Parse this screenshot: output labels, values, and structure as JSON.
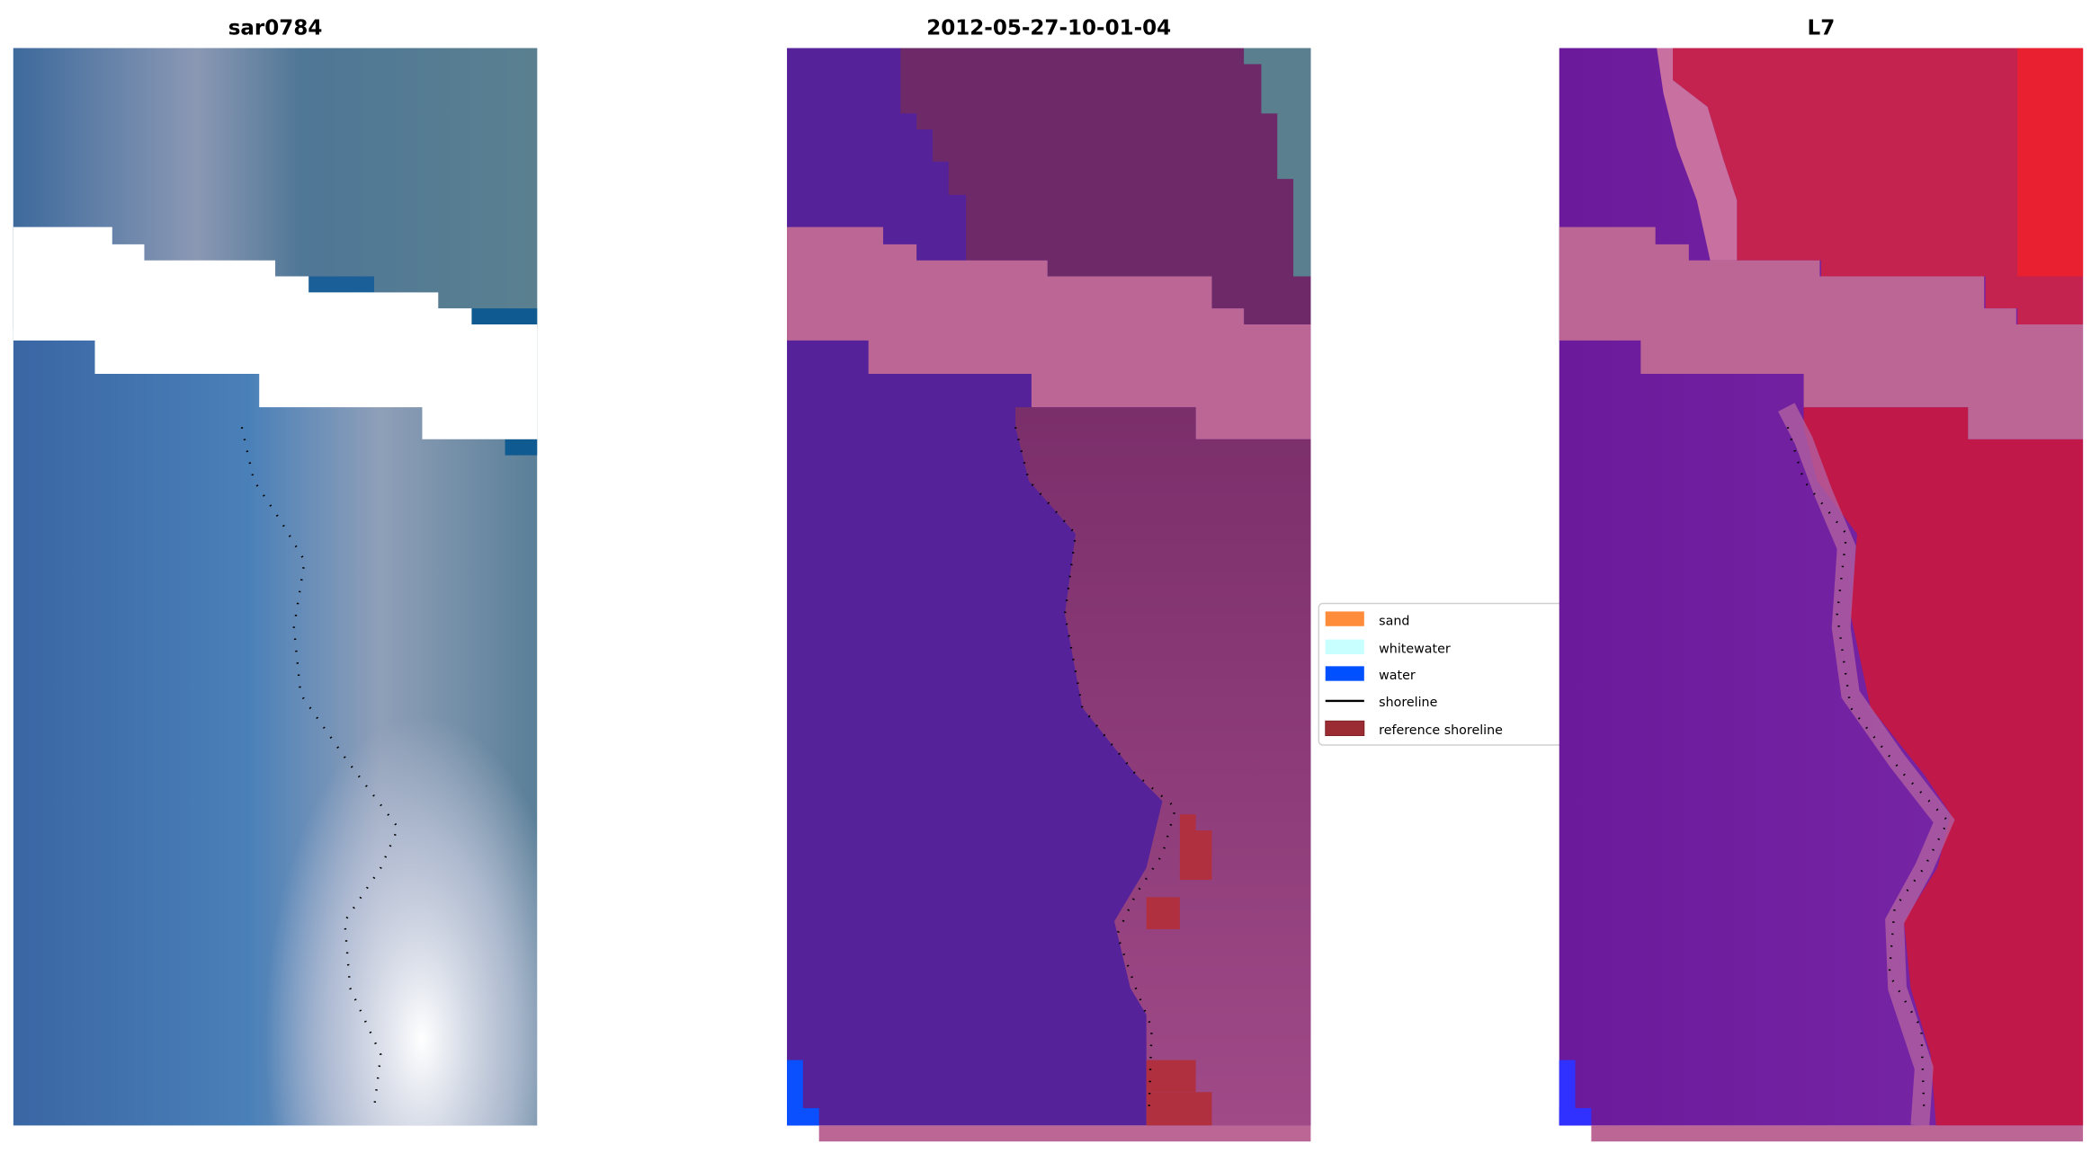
{
  "panels": [
    {
      "title": "sar0784",
      "kind": "rgb-image"
    },
    {
      "title": "2012-05-27-10-01-04",
      "kind": "classified-image"
    },
    {
      "title": "L7",
      "kind": "index-image"
    }
  ],
  "legend": {
    "items": [
      {
        "label": "sand",
        "color": "#ff8c3a",
        "type": "patch"
      },
      {
        "label": "whitewater",
        "color": "#c8ffff",
        "type": "patch"
      },
      {
        "label": "water",
        "color": "#0050ff",
        "type": "patch"
      },
      {
        "label": "shoreline",
        "color": "#000000",
        "type": "line"
      },
      {
        "label": "reference shoreline",
        "color": "#9b2c33",
        "type": "patch"
      }
    ]
  },
  "colors": {
    "water_class": "#55229a",
    "cloud_mask": "#bb6695",
    "land": "#7a3070",
    "reference_shoreline": "#b03040"
  }
}
